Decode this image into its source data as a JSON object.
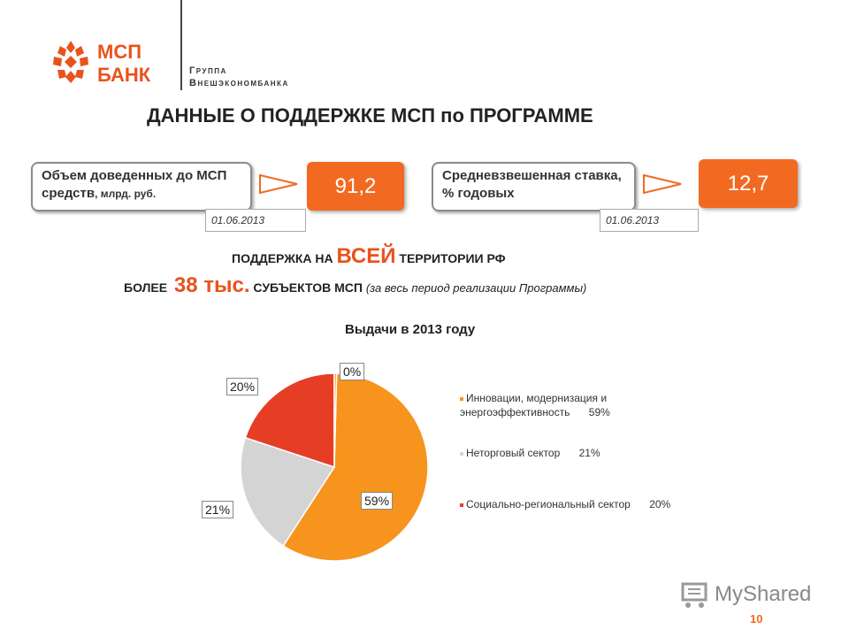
{
  "header": {
    "logo_line1": "МСП",
    "logo_line2": "БАНК",
    "group_line1": "Группа",
    "group_line2": "Внешэкономбанка"
  },
  "title": "ДАННЫЕ О ПОДДЕРЖКЕ МСП по ПРОГРАММЕ",
  "metrics": [
    {
      "label_main": "Объем доведенных до МСП средств",
      "label_unit": ", млрд. руб.",
      "value": "91,2",
      "date": "01.06.2013"
    },
    {
      "label_main": "Средневзвешенная ставка, % годовых",
      "label_unit": "",
      "value": "12,7",
      "date": "01.06.2013"
    }
  ],
  "support": {
    "line1_pre": "ПОДДЕРЖКА НА",
    "line1_emph": "ВСЕЙ",
    "line1_post": "ТЕРРИТОРИИ РФ",
    "line2_pre": "БОЛЕЕ",
    "line2_emph": "38 тыс.",
    "line2_post": "СУБЪЕКТОВ МСП",
    "line2_note": "(за весь период реализации Программы)"
  },
  "chart_data": {
    "type": "pie",
    "title": "Выдачи в 2013 году",
    "slices": [
      {
        "name": "Инновации, модернизация и энергоэффективность",
        "value": 59,
        "label": "59%",
        "color": "#f7941d"
      },
      {
        "name": "Неторговый сектор",
        "value": 21,
        "label": "21%",
        "color": "#d4d4d4"
      },
      {
        "name": "Социально-региональный сектор",
        "value": 20,
        "label": "20%",
        "color": "#e63e24"
      },
      {
        "name": "",
        "value": 0.4,
        "label": "0%",
        "color": "#f7941d"
      }
    ],
    "legend": [
      {
        "name": "Инновации, модернизация и энергоэффективность",
        "pct": "59%",
        "color": "#f7941d"
      },
      {
        "name": "Неторговый сектор",
        "pct": "21%",
        "color": "#d4d4d4"
      },
      {
        "name": "Социально-региональный сектор",
        "pct": "20%",
        "color": "#e63e24"
      }
    ]
  },
  "watermark": "MyShared",
  "page_number": "10",
  "colors": {
    "accent": "#f26a21",
    "logo": "#e8531d"
  }
}
